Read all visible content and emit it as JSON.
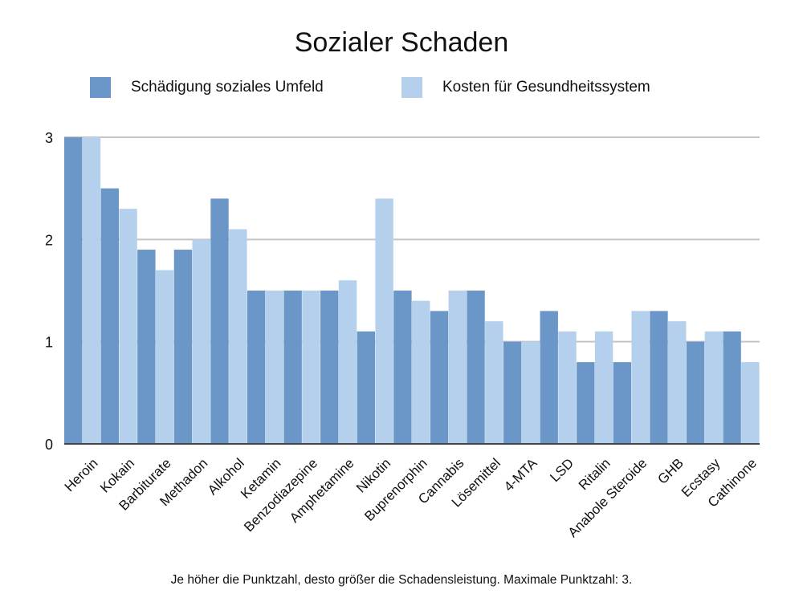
{
  "chart_data": {
    "type": "bar",
    "title": "Sozialer Schaden",
    "note": "Je höher die Punktzahl, desto größer die Schadensleistung. Maximale Punktzahl: 3.",
    "categories": [
      "Heroin",
      "Kokain",
      "Barbiturate",
      "Methadon",
      "Alkohol",
      "Ketamin",
      "Benzodiazepine",
      "Amphetamine",
      "Nikotin",
      "Buprenorphin",
      "Cannabis",
      "Lösemittel",
      "4-MTA",
      "LSD",
      "Ritalin",
      "Anabole Steroide",
      "GHB",
      "Ecstasy",
      "Cathinone"
    ],
    "series": [
      {
        "name": "Schädigung soziales Umfeld",
        "color": "#6a97c7",
        "values": [
          3.0,
          2.5,
          1.9,
          1.9,
          2.4,
          1.5,
          1.5,
          1.5,
          1.1,
          1.5,
          1.3,
          1.5,
          1.0,
          1.3,
          0.8,
          0.8,
          1.3,
          1.0,
          1.1
        ]
      },
      {
        "name": "Kosten für Gesundheitssystem",
        "color": "#b5d0ec",
        "values": [
          3.0,
          2.3,
          1.7,
          2.0,
          2.1,
          1.5,
          1.5,
          1.6,
          2.4,
          1.4,
          1.5,
          1.2,
          1.0,
          1.1,
          1.1,
          1.3,
          1.2,
          1.1,
          0.8
        ]
      }
    ],
    "yticks": [
      "0",
      "1",
      "2",
      "3"
    ],
    "ylim": [
      0,
      3
    ],
    "grid": true,
    "legend_position": "top"
  }
}
